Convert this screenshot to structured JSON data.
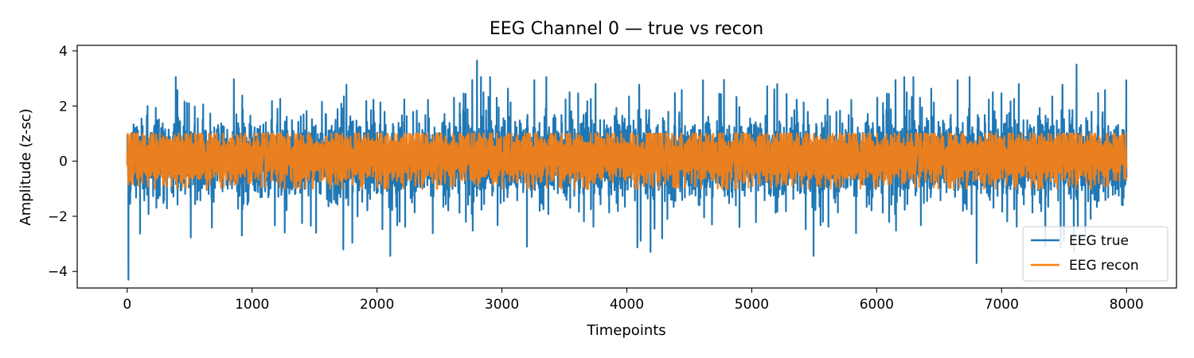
{
  "chart_data": {
    "type": "line",
    "title": "EEG Channel 0 — true vs recon",
    "xlabel": "Timepoints",
    "ylabel": "Amplitude (z-sc)",
    "xlim": [
      -400,
      8400
    ],
    "ylim": [
      -4.6,
      4.2
    ],
    "x_ticks": [
      0,
      1000,
      2000,
      3000,
      4000,
      5000,
      6000,
      7000,
      8000
    ],
    "y_ticks": [
      -4,
      -2,
      0,
      2,
      4
    ],
    "y_tick_labels": [
      "−4",
      "−2",
      "0",
      "2",
      "4"
    ],
    "grid": false,
    "legend_position": "bottom-right",
    "series": [
      {
        "name": "EEG true",
        "color": "#1f77b4",
        "x_range": [
          0,
          8000
        ],
        "n_points": 8000,
        "typical_band": [
          -0.75,
          1.0
        ],
        "approx_range": [
          -4.3,
          3.65
        ],
        "extremes": [
          {
            "x": 10,
            "y": -4.3
          },
          {
            "x": 2800,
            "y": 3.65
          },
          {
            "x": 7600,
            "y": 3.5
          },
          {
            "x": 6800,
            "y": -3.7
          },
          {
            "x": 1730,
            "y": -3.2
          },
          {
            "x": 3200,
            "y": -3.1
          },
          {
            "x": 7350,
            "y": -3.1
          }
        ]
      },
      {
        "name": "EEG recon",
        "color": "#ff7f0e",
        "x_range": [
          0,
          8000
        ],
        "n_points": 8000,
        "typical_band": [
          -0.75,
          1.0
        ],
        "approx_range": [
          -1.0,
          1.0
        ]
      }
    ]
  }
}
